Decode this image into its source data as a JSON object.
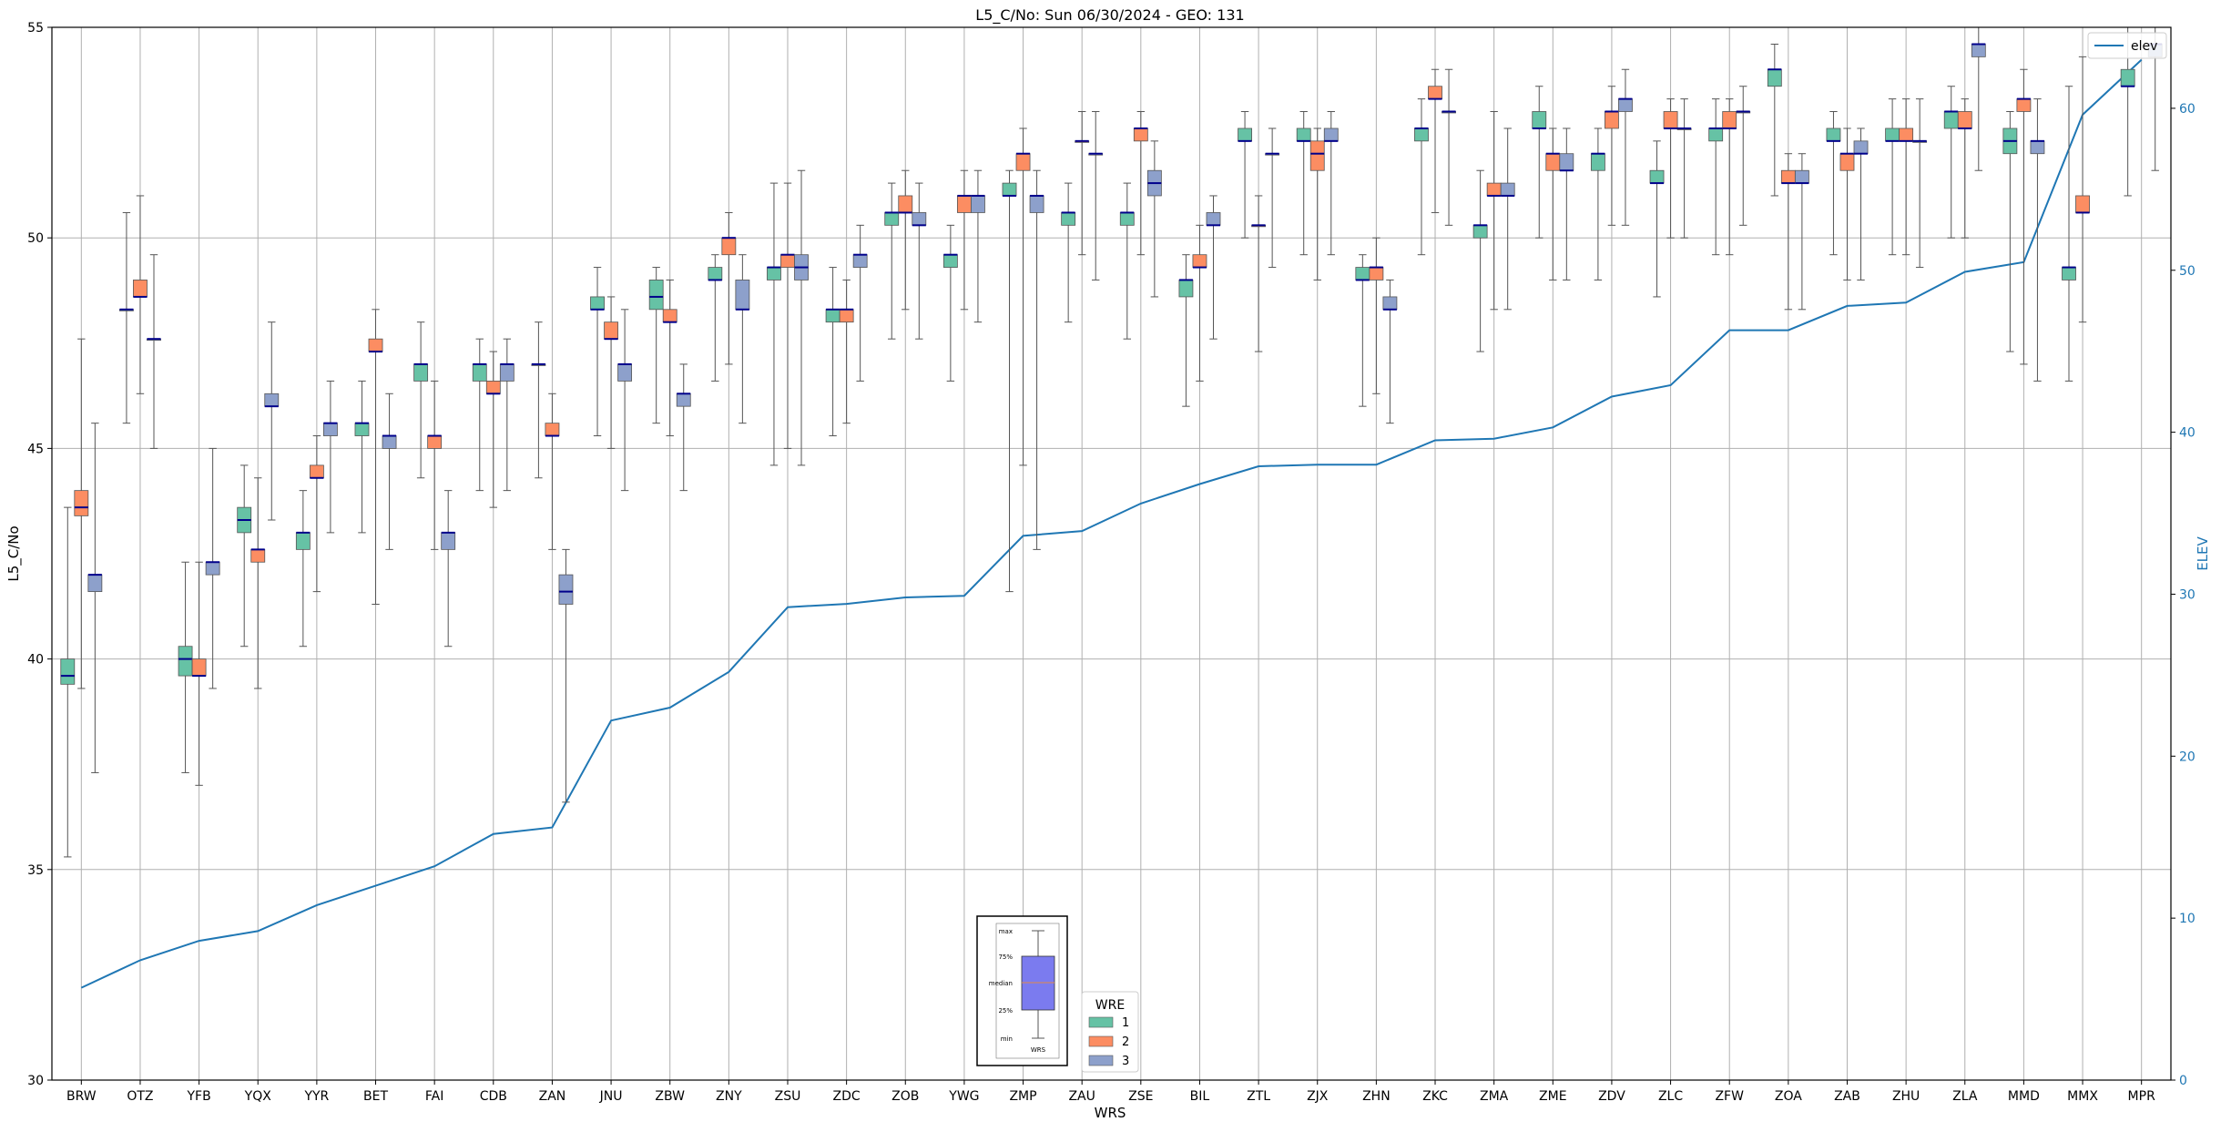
{
  "chart_data": {
    "type": "box",
    "title": "L5_C/No: Sun 06/30/2024 - GEO: 131",
    "xlabel": "WRS",
    "ylabel": "L5_C/No",
    "y2label": "ELEV",
    "ylim": [
      30,
      55
    ],
    "y2lim": [
      0,
      65
    ],
    "yticks": [
      30,
      35,
      40,
      45,
      50,
      55
    ],
    "y2ticks": [
      0,
      10,
      20,
      30,
      40,
      50,
      60
    ],
    "grid": true,
    "categories": [
      "BRW",
      "OTZ",
      "YFB",
      "YQX",
      "YYR",
      "BET",
      "FAI",
      "CDB",
      "ZAN",
      "JNU",
      "ZBW",
      "ZNY",
      "ZSU",
      "ZDC",
      "ZOB",
      "YWG",
      "ZMP",
      "ZAU",
      "ZSE",
      "BIL",
      "ZTL",
      "ZJX",
      "ZHN",
      "ZKC",
      "ZMA",
      "ZME",
      "ZDV",
      "ZLC",
      "ZFW",
      "ZOA",
      "ZAB",
      "ZHU",
      "ZLA",
      "MMD",
      "MMX",
      "MPR"
    ],
    "legend_elev": {
      "label": "elev",
      "placement": "top-right"
    },
    "legend_wre": {
      "title": "WRE",
      "placement": "bottom-center",
      "entries": [
        {
          "label": "1",
          "color": "#66c2a5"
        },
        {
          "label": "2",
          "color": "#fc8d62"
        },
        {
          "label": "3",
          "color": "#8da0cb"
        }
      ]
    },
    "inset_key": {
      "labels": [
        "max",
        "75%",
        "median",
        "25%",
        "min"
      ],
      "xlabel": "WRS",
      "color": "#7b7bef"
    },
    "colors": {
      "wre1": "#66c2a5",
      "wre2": "#fc8d62",
      "wre3": "#8da0cb",
      "median": "#00008b",
      "elev": "#1f77b4",
      "grid": "#b0b0b0"
    },
    "elev": [
      5.7,
      7.4,
      8.6,
      9.2,
      10.8,
      12.0,
      13.2,
      15.2,
      15.6,
      22.2,
      23.0,
      25.2,
      29.2,
      29.4,
      29.8,
      29.9,
      33.6,
      33.9,
      35.6,
      36.8,
      37.9,
      38.0,
      38.0,
      39.5,
      39.6,
      40.3,
      42.2,
      42.9,
      46.3,
      46.3,
      47.8,
      48.0,
      49.9,
      50.5,
      59.6,
      63.0
    ],
    "boxes": [
      [
        {
          "wre": 1,
          "min": 35.3,
          "q1": 39.4,
          "med": 39.6,
          "q3": 40.0,
          "max": 43.6
        },
        {
          "wre": 2,
          "min": 39.3,
          "q1": 43.4,
          "med": 43.6,
          "q3": 44.0,
          "max": 47.6
        },
        {
          "wre": 3,
          "min": 37.3,
          "q1": 41.6,
          "med": 42.0,
          "q3": 42.0,
          "max": 45.6
        }
      ],
      [
        {
          "wre": 1,
          "min": 45.6,
          "q1": 48.3,
          "med": 48.3,
          "q3": 48.3,
          "max": 50.6
        },
        {
          "wre": 2,
          "min": 46.3,
          "q1": 48.6,
          "med": 48.6,
          "q3": 49.0,
          "max": 51.0
        },
        {
          "wre": 3,
          "min": 45.0,
          "q1": 47.6,
          "med": 47.6,
          "q3": 47.6,
          "max": 49.6
        }
      ],
      [
        {
          "wre": 1,
          "min": 37.3,
          "q1": 39.6,
          "med": 40.0,
          "q3": 40.3,
          "max": 42.3
        },
        {
          "wre": 2,
          "min": 37.0,
          "q1": 39.6,
          "med": 39.6,
          "q3": 40.0,
          "max": 42.3
        },
        {
          "wre": 3,
          "min": 39.3,
          "q1": 42.0,
          "med": 42.3,
          "q3": 42.3,
          "max": 45.0
        }
      ],
      [
        {
          "wre": 1,
          "min": 40.3,
          "q1": 43.0,
          "med": 43.3,
          "q3": 43.6,
          "max": 44.6
        },
        {
          "wre": 2,
          "min": 39.3,
          "q1": 42.3,
          "med": 42.6,
          "q3": 42.6,
          "max": 44.3
        },
        {
          "wre": 3,
          "min": 43.3,
          "q1": 46.0,
          "med": 46.0,
          "q3": 46.3,
          "max": 48.0
        }
      ],
      [
        {
          "wre": 1,
          "min": 40.3,
          "q1": 42.6,
          "med": 43.0,
          "q3": 43.0,
          "max": 44.0
        },
        {
          "wre": 2,
          "min": 41.6,
          "q1": 44.3,
          "med": 44.3,
          "q3": 44.6,
          "max": 45.3
        },
        {
          "wre": 3,
          "min": 43.0,
          "q1": 45.3,
          "med": 45.6,
          "q3": 45.6,
          "max": 46.6
        }
      ],
      [
        {
          "wre": 1,
          "min": 43.0,
          "q1": 45.3,
          "med": 45.6,
          "q3": 45.6,
          "max": 46.6
        },
        {
          "wre": 2,
          "min": 41.3,
          "q1": 47.3,
          "med": 47.3,
          "q3": 47.6,
          "max": 48.3
        },
        {
          "wre": 3,
          "min": 42.6,
          "q1": 45.0,
          "med": 45.3,
          "q3": 45.3,
          "max": 46.3
        }
      ],
      [
        {
          "wre": 1,
          "min": 44.3,
          "q1": 46.6,
          "med": 47.0,
          "q3": 47.0,
          "max": 48.0
        },
        {
          "wre": 2,
          "min": 42.6,
          "q1": 45.0,
          "med": 45.3,
          "q3": 45.3,
          "max": 46.6
        },
        {
          "wre": 3,
          "min": 40.3,
          "q1": 42.6,
          "med": 43.0,
          "q3": 43.0,
          "max": 44.0
        }
      ],
      [
        {
          "wre": 1,
          "min": 44.0,
          "q1": 46.6,
          "med": 47.0,
          "q3": 47.0,
          "max": 47.6
        },
        {
          "wre": 2,
          "min": 43.6,
          "q1": 46.3,
          "med": 46.3,
          "q3": 46.6,
          "max": 47.3
        },
        {
          "wre": 3,
          "min": 44.0,
          "q1": 46.6,
          "med": 47.0,
          "q3": 47.0,
          "max": 47.6
        }
      ],
      [
        {
          "wre": 1,
          "min": 44.3,
          "q1": 47.0,
          "med": 47.0,
          "q3": 47.0,
          "max": 48.0
        },
        {
          "wre": 2,
          "min": 42.6,
          "q1": 45.3,
          "med": 45.3,
          "q3": 45.6,
          "max": 46.3
        },
        {
          "wre": 3,
          "min": 36.6,
          "q1": 41.3,
          "med": 41.6,
          "q3": 42.0,
          "max": 42.6
        }
      ],
      [
        {
          "wre": 1,
          "min": 45.3,
          "q1": 48.3,
          "med": 48.3,
          "q3": 48.6,
          "max": 49.3
        },
        {
          "wre": 2,
          "min": 45.0,
          "q1": 47.6,
          "med": 47.6,
          "q3": 48.0,
          "max": 48.6
        },
        {
          "wre": 3,
          "min": 44.0,
          "q1": 46.6,
          "med": 47.0,
          "q3": 47.0,
          "max": 48.3
        }
      ],
      [
        {
          "wre": 1,
          "min": 45.6,
          "q1": 48.3,
          "med": 48.6,
          "q3": 49.0,
          "max": 49.3
        },
        {
          "wre": 2,
          "min": 45.3,
          "q1": 48.0,
          "med": 48.0,
          "q3": 48.3,
          "max": 49.0
        },
        {
          "wre": 3,
          "min": 44.0,
          "q1": 46.0,
          "med": 46.3,
          "q3": 46.3,
          "max": 47.0
        }
      ],
      [
        {
          "wre": 1,
          "min": 46.6,
          "q1": 49.0,
          "med": 49.0,
          "q3": 49.3,
          "max": 49.6
        },
        {
          "wre": 2,
          "min": 47.0,
          "q1": 49.6,
          "med": 50.0,
          "q3": 50.0,
          "max": 50.6
        },
        {
          "wre": 3,
          "min": 45.6,
          "q1": 48.3,
          "med": 48.3,
          "q3": 49.0,
          "max": 49.6
        }
      ],
      [
        {
          "wre": 1,
          "min": 44.6,
          "q1": 49.0,
          "med": 49.3,
          "q3": 49.3,
          "max": 51.3
        },
        {
          "wre": 2,
          "min": 45.0,
          "q1": 49.3,
          "med": 49.6,
          "q3": 49.6,
          "max": 51.3
        },
        {
          "wre": 3,
          "min": 44.6,
          "q1": 49.0,
          "med": 49.3,
          "q3": 49.6,
          "max": 51.6
        }
      ],
      [
        {
          "wre": 1,
          "min": 45.3,
          "q1": 48.0,
          "med": 48.3,
          "q3": 48.3,
          "max": 49.3
        },
        {
          "wre": 2,
          "min": 45.6,
          "q1": 48.0,
          "med": 48.3,
          "q3": 48.3,
          "max": 49.0
        },
        {
          "wre": 3,
          "min": 46.6,
          "q1": 49.3,
          "med": 49.6,
          "q3": 49.6,
          "max": 50.3
        }
      ],
      [
        {
          "wre": 1,
          "min": 47.6,
          "q1": 50.3,
          "med": 50.6,
          "q3": 50.6,
          "max": 51.3
        },
        {
          "wre": 2,
          "min": 48.3,
          "q1": 50.6,
          "med": 50.6,
          "q3": 51.0,
          "max": 51.6
        },
        {
          "wre": 3,
          "min": 47.6,
          "q1": 50.3,
          "med": 50.3,
          "q3": 50.6,
          "max": 51.3
        }
      ],
      [
        {
          "wre": 1,
          "min": 46.6,
          "q1": 49.3,
          "med": 49.6,
          "q3": 49.6,
          "max": 50.3
        },
        {
          "wre": 2,
          "min": 48.3,
          "q1": 50.6,
          "med": 51.0,
          "q3": 51.0,
          "max": 51.6
        },
        {
          "wre": 3,
          "min": 48.0,
          "q1": 50.6,
          "med": 51.0,
          "q3": 51.0,
          "max": 51.6
        }
      ],
      [
        {
          "wre": 1,
          "min": 41.6,
          "q1": 51.0,
          "med": 51.0,
          "q3": 51.3,
          "max": 51.6
        },
        {
          "wre": 2,
          "min": 44.6,
          "q1": 51.6,
          "med": 52.0,
          "q3": 52.0,
          "max": 52.6
        },
        {
          "wre": 3,
          "min": 42.6,
          "q1": 50.6,
          "med": 51.0,
          "q3": 51.0,
          "max": 51.6
        }
      ],
      [
        {
          "wre": 1,
          "min": 48.0,
          "q1": 50.3,
          "med": 50.6,
          "q3": 50.6,
          "max": 51.3
        },
        {
          "wre": 2,
          "min": 49.6,
          "q1": 52.3,
          "med": 52.3,
          "q3": 52.3,
          "max": 53.0
        },
        {
          "wre": 3,
          "min": 49.0,
          "q1": 52.0,
          "med": 52.0,
          "q3": 52.0,
          "max": 53.0
        }
      ],
      [
        {
          "wre": 1,
          "min": 47.6,
          "q1": 50.3,
          "med": 50.6,
          "q3": 50.6,
          "max": 51.3
        },
        {
          "wre": 2,
          "min": 49.6,
          "q1": 52.3,
          "med": 52.6,
          "q3": 52.6,
          "max": 53.0
        },
        {
          "wre": 3,
          "min": 48.6,
          "q1": 51.0,
          "med": 51.3,
          "q3": 51.6,
          "max": 52.3
        }
      ],
      [
        {
          "wre": 1,
          "min": 46.0,
          "q1": 48.6,
          "med": 49.0,
          "q3": 49.0,
          "max": 49.6
        },
        {
          "wre": 2,
          "min": 46.6,
          "q1": 49.3,
          "med": 49.3,
          "q3": 49.6,
          "max": 50.3
        },
        {
          "wre": 3,
          "min": 47.6,
          "q1": 50.3,
          "med": 50.3,
          "q3": 50.6,
          "max": 51.0
        }
      ],
      [
        {
          "wre": 1,
          "min": 50.0,
          "q1": 52.3,
          "med": 52.3,
          "q3": 52.6,
          "max": 53.0
        },
        {
          "wre": 2,
          "min": 47.3,
          "q1": 50.3,
          "med": 50.3,
          "q3": 50.3,
          "max": 51.0
        },
        {
          "wre": 3,
          "min": 49.3,
          "q1": 52.0,
          "med": 52.0,
          "q3": 52.0,
          "max": 52.6
        }
      ],
      [
        {
          "wre": 1,
          "min": 49.6,
          "q1": 52.3,
          "med": 52.3,
          "q3": 52.6,
          "max": 53.0
        },
        {
          "wre": 2,
          "min": 49.0,
          "q1": 51.6,
          "med": 52.0,
          "q3": 52.3,
          "max": 52.6
        },
        {
          "wre": 3,
          "min": 49.6,
          "q1": 52.3,
          "med": 52.3,
          "q3": 52.6,
          "max": 53.0
        }
      ],
      [
        {
          "wre": 1,
          "min": 46.0,
          "q1": 49.0,
          "med": 49.0,
          "q3": 49.3,
          "max": 49.6
        },
        {
          "wre": 2,
          "min": 46.3,
          "q1": 49.0,
          "med": 49.3,
          "q3": 49.3,
          "max": 50.0
        },
        {
          "wre": 3,
          "min": 45.6,
          "q1": 48.3,
          "med": 48.3,
          "q3": 48.6,
          "max": 49.0
        }
      ],
      [
        {
          "wre": 1,
          "min": 49.6,
          "q1": 52.3,
          "med": 52.6,
          "q3": 52.6,
          "max": 53.3
        },
        {
          "wre": 2,
          "min": 50.6,
          "q1": 53.3,
          "med": 53.3,
          "q3": 53.6,
          "max": 54.0
        },
        {
          "wre": 3,
          "min": 50.3,
          "q1": 53.0,
          "med": 53.0,
          "q3": 53.0,
          "max": 54.0
        }
      ],
      [
        {
          "wre": 1,
          "min": 47.3,
          "q1": 50.0,
          "med": 50.3,
          "q3": 50.3,
          "max": 51.6
        },
        {
          "wre": 2,
          "min": 48.3,
          "q1": 51.0,
          "med": 51.0,
          "q3": 51.3,
          "max": 53.0
        },
        {
          "wre": 3,
          "min": 48.3,
          "q1": 51.0,
          "med": 51.0,
          "q3": 51.3,
          "max": 52.6
        }
      ],
      [
        {
          "wre": 1,
          "min": 50.0,
          "q1": 52.6,
          "med": 52.6,
          "q3": 53.0,
          "max": 53.6
        },
        {
          "wre": 2,
          "min": 49.0,
          "q1": 51.6,
          "med": 52.0,
          "q3": 52.0,
          "max": 52.6
        },
        {
          "wre": 3,
          "min": 49.0,
          "q1": 51.6,
          "med": 51.6,
          "q3": 52.0,
          "max": 52.6
        }
      ],
      [
        {
          "wre": 1,
          "min": 49.0,
          "q1": 51.6,
          "med": 52.0,
          "q3": 52.0,
          "max": 52.6
        },
        {
          "wre": 2,
          "min": 50.3,
          "q1": 52.6,
          "med": 53.0,
          "q3": 53.0,
          "max": 53.6
        },
        {
          "wre": 3,
          "min": 50.3,
          "q1": 53.0,
          "med": 53.3,
          "q3": 53.3,
          "max": 54.0
        }
      ],
      [
        {
          "wre": 1,
          "min": 48.6,
          "q1": 51.3,
          "med": 51.3,
          "q3": 51.6,
          "max": 52.3
        },
        {
          "wre": 2,
          "min": 50.0,
          "q1": 52.6,
          "med": 52.6,
          "q3": 53.0,
          "max": 53.3
        },
        {
          "wre": 3,
          "min": 50.0,
          "q1": 52.6,
          "med": 52.6,
          "q3": 52.6,
          "max": 53.3
        }
      ],
      [
        {
          "wre": 1,
          "min": 49.6,
          "q1": 52.3,
          "med": 52.6,
          "q3": 52.6,
          "max": 53.3
        },
        {
          "wre": 2,
          "min": 49.6,
          "q1": 52.6,
          "med": 52.6,
          "q3": 53.0,
          "max": 53.3
        },
        {
          "wre": 3,
          "min": 50.3,
          "q1": 53.0,
          "med": 53.0,
          "q3": 53.0,
          "max": 53.6
        }
      ],
      [
        {
          "wre": 1,
          "min": 51.0,
          "q1": 53.6,
          "med": 54.0,
          "q3": 54.0,
          "max": 54.6
        },
        {
          "wre": 2,
          "min": 48.3,
          "q1": 51.3,
          "med": 51.3,
          "q3": 51.6,
          "max": 52.0
        },
        {
          "wre": 3,
          "min": 48.3,
          "q1": 51.3,
          "med": 51.3,
          "q3": 51.6,
          "max": 52.0
        }
      ],
      [
        {
          "wre": 1,
          "min": 49.6,
          "q1": 52.3,
          "med": 52.3,
          "q3": 52.6,
          "max": 53.0
        },
        {
          "wre": 2,
          "min": 49.0,
          "q1": 51.6,
          "med": 52.0,
          "q3": 52.0,
          "max": 52.6
        },
        {
          "wre": 3,
          "min": 49.0,
          "q1": 52.0,
          "med": 52.0,
          "q3": 52.3,
          "max": 52.6
        }
      ],
      [
        {
          "wre": 1,
          "min": 49.6,
          "q1": 52.3,
          "med": 52.3,
          "q3": 52.6,
          "max": 53.3
        },
        {
          "wre": 2,
          "min": 49.6,
          "q1": 52.3,
          "med": 52.3,
          "q3": 52.6,
          "max": 53.3
        },
        {
          "wre": 3,
          "min": 49.3,
          "q1": 52.3,
          "med": 52.3,
          "q3": 52.3,
          "max": 53.3
        }
      ],
      [
        {
          "wre": 1,
          "min": 50.0,
          "q1": 52.6,
          "med": 53.0,
          "q3": 53.0,
          "max": 53.6
        },
        {
          "wre": 2,
          "min": 50.0,
          "q1": 52.6,
          "med": 52.6,
          "q3": 53.0,
          "max": 53.3
        },
        {
          "wre": 3,
          "min": 51.6,
          "q1": 54.3,
          "med": 54.6,
          "q3": 54.6,
          "max": 55.0
        }
      ],
      [
        {
          "wre": 1,
          "min": 47.3,
          "q1": 52.0,
          "med": 52.3,
          "q3": 52.6,
          "max": 53.0
        },
        {
          "wre": 2,
          "min": 47.0,
          "q1": 53.0,
          "med": 53.3,
          "q3": 53.3,
          "max": 54.0
        },
        {
          "wre": 3,
          "min": 46.6,
          "q1": 52.0,
          "med": 52.3,
          "q3": 52.3,
          "max": 53.3
        }
      ],
      [
        {
          "wre": 1,
          "min": 46.6,
          "q1": 49.0,
          "med": 49.3,
          "q3": 49.3,
          "max": 53.6
        },
        {
          "wre": 2,
          "min": 48.0,
          "q1": 50.6,
          "med": 50.6,
          "q3": 51.0,
          "max": 54.3
        },
        {
          "wre": 3,
          "min": null,
          "q1": null,
          "med": null,
          "q3": null,
          "max": null
        }
      ],
      [
        {
          "wre": 1,
          "min": 51.0,
          "q1": 53.6,
          "med": 53.6,
          "q3": 54.0,
          "max": 55.0
        },
        {
          "wre": 2,
          "min": null,
          "q1": null,
          "med": null,
          "q3": null,
          "max": null
        },
        {
          "wre": 3,
          "min": 51.6,
          "q1": 54.3,
          "med": 54.6,
          "q3": 54.6,
          "max": 55.0
        }
      ]
    ]
  }
}
